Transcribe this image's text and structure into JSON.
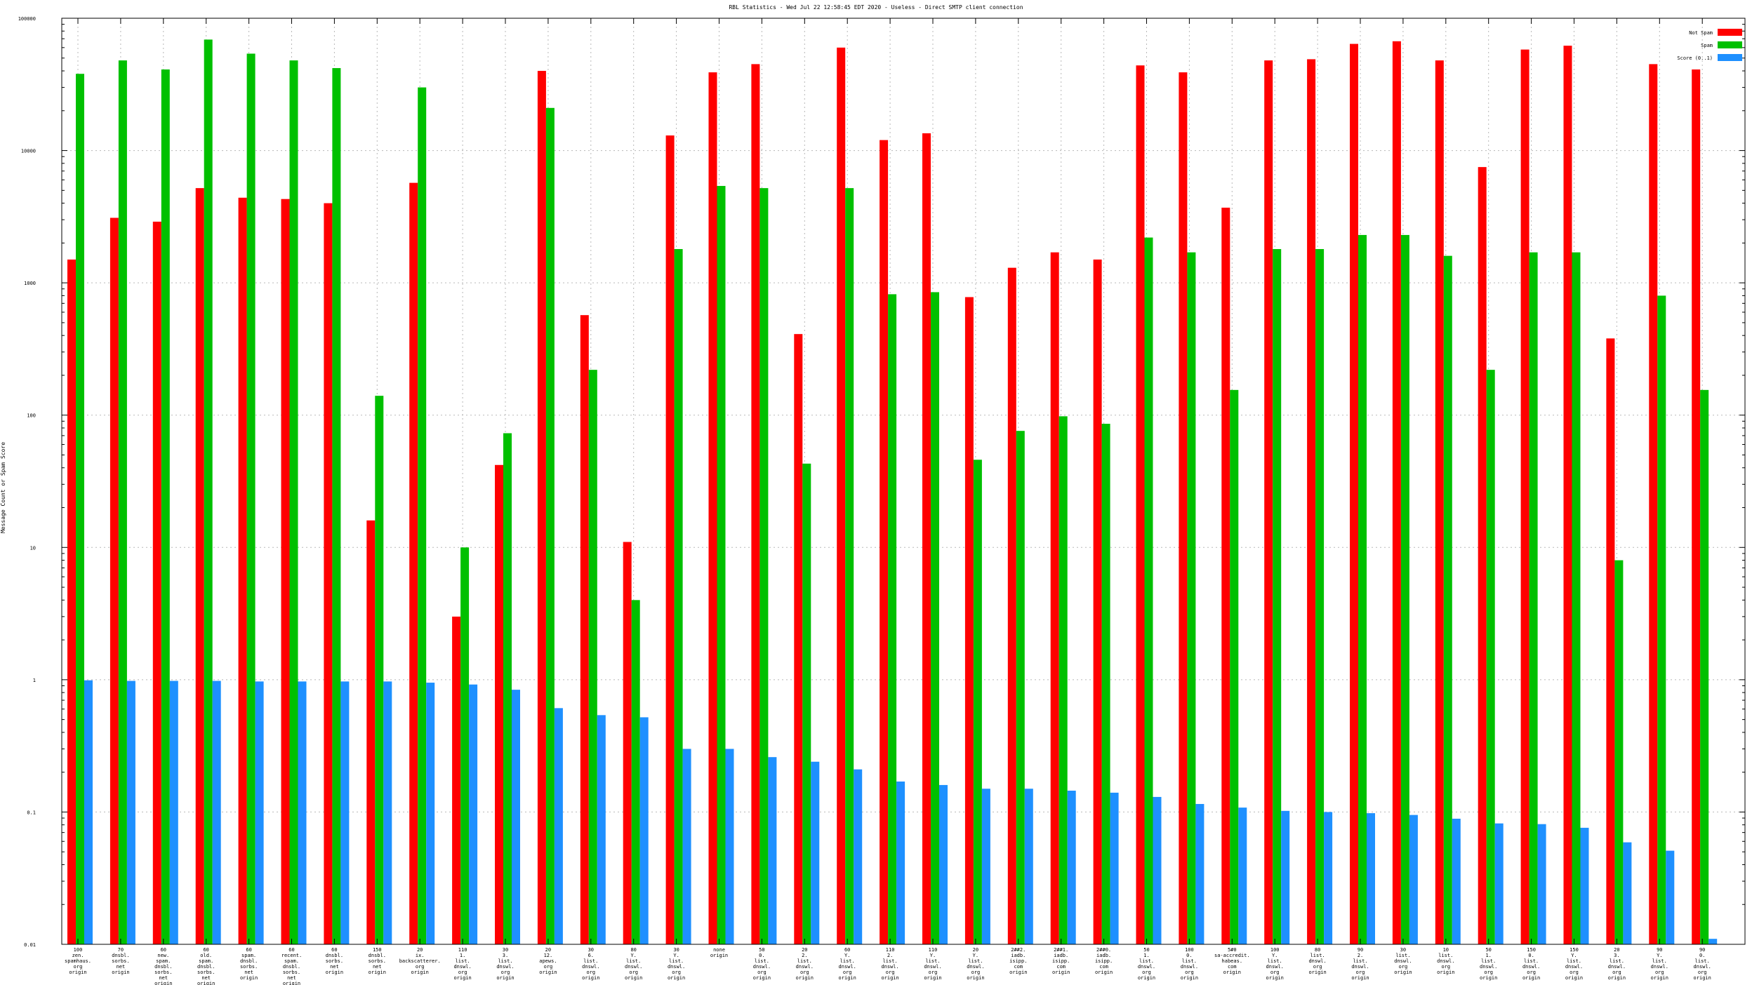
{
  "chart_data": {
    "type": "bar",
    "title": "RBL Statistics - Wed Jul 22 12:58:45 EDT 2020 - Useless - Direct SMTP client connection",
    "ylabel": "Message Count or Spam Score",
    "xlabel": "",
    "yscale": "log",
    "ylim": [
      0.01,
      100000
    ],
    "yticks": [
      {
        "value": 0.01,
        "label": "0.01"
      },
      {
        "value": 0.1,
        "label": "0.1"
      },
      {
        "value": 1,
        "label": "1"
      },
      {
        "value": 10,
        "label": "10"
      },
      {
        "value": 100,
        "label": "100"
      },
      {
        "value": 1000,
        "label": "1000"
      },
      {
        "value": 10000,
        "label": "10000"
      },
      {
        "value": 100000,
        "label": "100000"
      }
    ],
    "grid": true,
    "legend_position": "top-right",
    "categories": [
      [
        "100",
        "zen.",
        "spamhaus.",
        "org",
        "origin"
      ],
      [
        "70",
        "dnsbl.",
        "sorbs.",
        "net",
        "origin"
      ],
      [
        "60",
        "new.",
        "spam.",
        "dnsbl.",
        "sorbs.",
        "net",
        "origin"
      ],
      [
        "60",
        "old.",
        "spam.",
        "dnsbl.",
        "sorbs.",
        "net",
        "origin"
      ],
      [
        "60",
        "spam.",
        "dnsbl.",
        "sorbs.",
        "net",
        "origin"
      ],
      [
        "60",
        "recent.",
        "spam.",
        "dnsbl.",
        "sorbs.",
        "net",
        "origin"
      ],
      [
        "60",
        "dnsbl.",
        "sorbs.",
        "net",
        "origin"
      ],
      [
        "150",
        "dnsbl.",
        "sorbs.",
        "net",
        "origin"
      ],
      [
        "20",
        "ix.",
        "backscatterer.",
        "org",
        "origin"
      ],
      [
        "110",
        "1.",
        "list.",
        "dnswl.",
        "org",
        "origin"
      ],
      [
        "30",
        "3.",
        "list.",
        "dnswl.",
        "org",
        "origin"
      ],
      [
        "20",
        "12.",
        "apews.",
        "org",
        "origin"
      ],
      [
        "30",
        "6.",
        "list.",
        "dnswl.",
        "org",
        "origin"
      ],
      [
        "80",
        "Y.",
        "list.",
        "dnswl.",
        "org",
        "origin"
      ],
      [
        "30",
        "Y.",
        "list.",
        "dnswl.",
        "org",
        "origin"
      ],
      [
        "none",
        "origin"
      ],
      [
        "50",
        "0.",
        "list.",
        "dnswl.",
        "org",
        "origin"
      ],
      [
        "20",
        "2.",
        "list.",
        "dnswl.",
        "org",
        "origin"
      ],
      [
        "60",
        "Y.",
        "list.",
        "dnswl.",
        "org",
        "origin"
      ],
      [
        "110",
        "2.",
        "list.",
        "dnswl.",
        "org",
        "origin"
      ],
      [
        "110",
        "Y.",
        "list.",
        "dnswl.",
        "org",
        "origin"
      ],
      [
        "20",
        "Y.",
        "list.",
        "dnswl.",
        "org",
        "origin"
      ],
      [
        "2##2.",
        "iadb.",
        "isipp.",
        "com",
        "origin"
      ],
      [
        "2##1.",
        "iadb.",
        "isipp.",
        "com",
        "origin"
      ],
      [
        "2##0.",
        "iadb.",
        "isipp.",
        "com",
        "origin"
      ],
      [
        "50",
        "1.",
        "list.",
        "dnswl.",
        "org",
        "origin"
      ],
      [
        "100",
        "0.",
        "list.",
        "dnswl.",
        "org",
        "origin"
      ],
      [
        "5#0",
        "sa-accredit.",
        "habeas.",
        "com",
        "origin"
      ],
      [
        "100",
        "Y.",
        "list.",
        "dnswl.",
        "org",
        "origin"
      ],
      [
        "80",
        "list.",
        "dnswl.",
        "org",
        "origin"
      ],
      [
        "90",
        "2.",
        "list.",
        "dnswl.",
        "org",
        "origin"
      ],
      [
        "30",
        "list.",
        "dnswl.",
        "org",
        "origin"
      ],
      [
        "10",
        "list.",
        "dnswl.",
        "org",
        "origin"
      ],
      [
        "50",
        "1.",
        "list.",
        "dnswl.",
        "org",
        "origin"
      ],
      [
        "150",
        "0.",
        "list.",
        "dnswl.",
        "org",
        "origin"
      ],
      [
        "150",
        "Y.",
        "list.",
        "dnswl.",
        "org",
        "origin"
      ],
      [
        "20",
        "3.",
        "list.",
        "dnswl.",
        "org",
        "origin"
      ],
      [
        "90",
        "Y.",
        "list.",
        "dnswl.",
        "org",
        "origin"
      ],
      [
        "90",
        "0.",
        "list.",
        "dnswl.",
        "org",
        "origin"
      ]
    ],
    "series": [
      {
        "name": "Not Spam",
        "color": "#ff0000",
        "values": [
          1500,
          3100,
          2900,
          5200,
          4400,
          4300,
          4000,
          16,
          5700,
          3,
          42,
          40000,
          570,
          11,
          13000,
          39000,
          45000,
          410,
          60000,
          12000,
          13500,
          780,
          1300,
          1700,
          1500,
          44000,
          39000,
          3700,
          48000,
          49000,
          64000,
          67000,
          48000,
          7500,
          58000,
          62000,
          380,
          45000,
          41000
        ]
      },
      {
        "name": "Spam",
        "color": "#00c000",
        "values": [
          38000,
          48000,
          41000,
          69000,
          54000,
          48000,
          42000,
          140,
          30000,
          10,
          73,
          21000,
          220,
          4,
          1800,
          5400,
          5200,
          43,
          5200,
          820,
          850,
          46,
          76,
          98,
          86,
          2200,
          1700,
          155,
          1800,
          1800,
          2300,
          2300,
          1600,
          220,
          1700,
          1700,
          8,
          800,
          155
        ]
      },
      {
        "name": "Score (0..1)",
        "color": "#1e90ff",
        "values": [
          0.99,
          0.98,
          0.98,
          0.98,
          0.97,
          0.97,
          0.97,
          0.97,
          0.95,
          0.92,
          0.84,
          0.61,
          0.54,
          0.52,
          0.3,
          0.3,
          0.26,
          0.24,
          0.21,
          0.17,
          0.16,
          0.15,
          0.15,
          0.145,
          0.14,
          0.13,
          0.115,
          0.108,
          0.102,
          0.1,
          0.098,
          0.095,
          0.089,
          0.082,
          0.081,
          0.076,
          0.059,
          0.051,
          0.011
        ]
      }
    ]
  }
}
